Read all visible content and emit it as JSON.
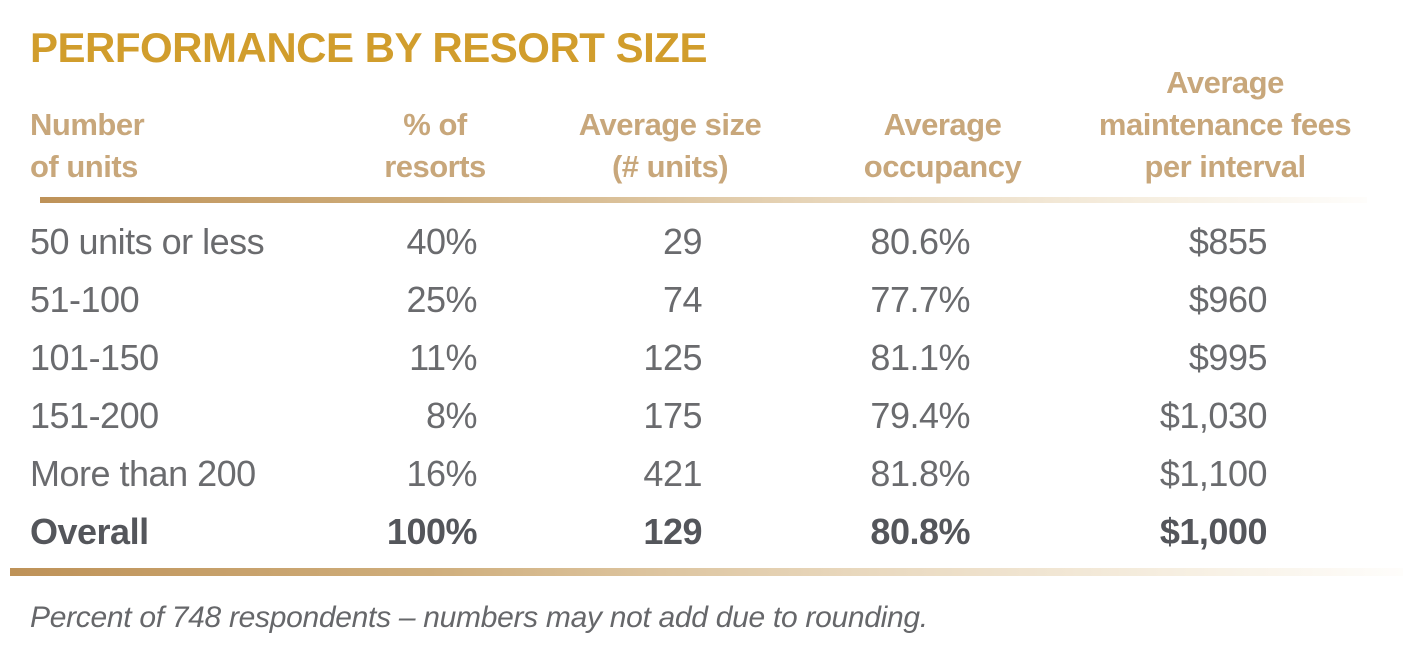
{
  "title": "PERFORMANCE BY RESORT SIZE",
  "footnote": "Percent of 748 respondents – numbers may not add due to rounding.",
  "colors": {
    "title_gold": "#D19D2C",
    "header_tan": "#C8A77B",
    "data_gray": "#6A6B6E",
    "overall_gray": "#54565B",
    "divider_gradient_start": "#BE9258",
    "divider_gradient_end": "#FEFDFB"
  },
  "table": {
    "headers": [
      {
        "lines": [
          "Number",
          "of units"
        ]
      },
      {
        "lines": [
          "% of",
          "resorts"
        ]
      },
      {
        "lines": [
          "Average size",
          "(# units)"
        ]
      },
      {
        "lines": [
          "Average",
          "occupancy"
        ]
      },
      {
        "lines": [
          "Average",
          "maintenance fees",
          "per interval"
        ]
      }
    ],
    "rows": [
      {
        "cells": [
          "50 units or less",
          "40%",
          "29",
          "80.6%",
          "$855"
        ]
      },
      {
        "cells": [
          "51-100",
          "25%",
          "74",
          "77.7%",
          "$960"
        ]
      },
      {
        "cells": [
          "101-150",
          "11%",
          "125",
          "81.1%",
          "$995"
        ]
      },
      {
        "cells": [
          "151-200",
          "8%",
          "175",
          "79.4%",
          "$1,030"
        ]
      },
      {
        "cells": [
          "More than 200",
          "16%",
          "421",
          "81.8%",
          "$1,100"
        ]
      },
      {
        "cells": [
          "Overall",
          "100%",
          "129",
          "80.8%",
          "$1,000"
        ]
      }
    ]
  },
  "chart_data": {
    "type": "table",
    "title": "PERFORMANCE BY RESORT SIZE",
    "columns": [
      "Number of units",
      "% of resorts",
      "Average size (# units)",
      "Average occupancy",
      "Average maintenance fees per interval"
    ],
    "rows": [
      [
        "50 units or less",
        "40%",
        29,
        "80.6%",
        "$855"
      ],
      [
        "51-100",
        "25%",
        74,
        "77.7%",
        "$960"
      ],
      [
        "101-150",
        "11%",
        125,
        "81.1%",
        "$995"
      ],
      [
        "151-200",
        "8%",
        175,
        "79.4%",
        "$1,030"
      ],
      [
        "More than 200",
        "16%",
        421,
        "81.8%",
        "$1,100"
      ],
      [
        "Overall",
        "100%",
        129,
        "80.8%",
        "$1,000"
      ]
    ],
    "footnote": "Percent of 748 respondents – numbers may not add due to rounding."
  }
}
